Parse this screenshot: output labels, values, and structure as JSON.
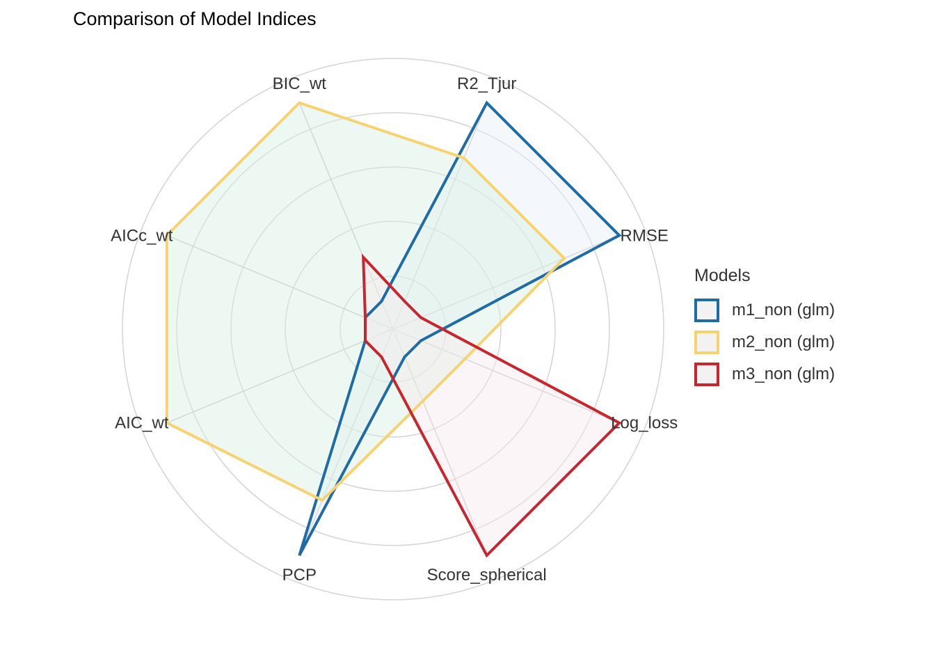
{
  "chart_data": {
    "type": "radar",
    "title": "Comparison of Model Indices",
    "axes": [
      "R2_Tjur",
      "RMSE",
      "Log_loss",
      "Score_spherical",
      "PCP",
      "AIC_wt",
      "AICc_wt",
      "BIC_wt"
    ],
    "rlim": [
      0,
      1
    ],
    "grid": true,
    "legend_title": "Models",
    "legend_position": "right",
    "series": [
      {
        "name": "m1_non (glm)",
        "color": "#1F6BA5",
        "fill": "#E6EEF8",
        "values": [
          1.0,
          1.0,
          0.1,
          0.1,
          1.0,
          0.1,
          0.1,
          0.1
        ]
      },
      {
        "name": "m2_non (glm)",
        "color": "#F7D36F",
        "fill": "#D8F0E2",
        "values": [
          0.75,
          0.75,
          0.3,
          0.3,
          0.75,
          1.0,
          1.0,
          1.0
        ]
      },
      {
        "name": "m3_non (glm)",
        "color": "#C9252C",
        "fill": "#F7E9EE",
        "values": [
          0.1,
          0.1,
          1.0,
          1.0,
          0.1,
          0.1,
          0.1,
          0.3
        ]
      }
    ]
  }
}
